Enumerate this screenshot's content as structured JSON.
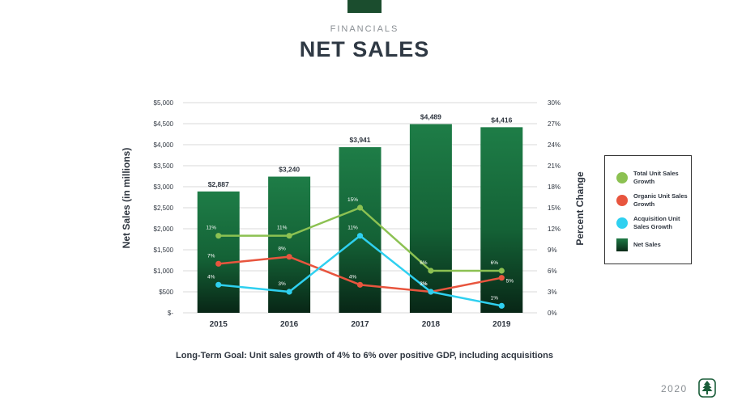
{
  "header": {
    "section_label": "FINANCIALS",
    "title": "NET SALES"
  },
  "chart_data": {
    "type": "bar",
    "categories": [
      "2015",
      "2016",
      "2017",
      "2018",
      "2019"
    ],
    "bar_series": {
      "name": "Net Sales",
      "values": [
        2887,
        3240,
        3941,
        4489,
        4416
      ],
      "labels": [
        "$2,887",
        "$3,240",
        "$3,941",
        "$4,489",
        "$4,416"
      ]
    },
    "line_series": [
      {
        "name": "Total Unit Sales Growth",
        "color": "#8cc152",
        "values": [
          11,
          11,
          15,
          6,
          6
        ],
        "labels": [
          "11%",
          "11%",
          "15%",
          "6%",
          "6%"
        ]
      },
      {
        "name": "Organic Unit Sales Growth",
        "color": "#e8553e",
        "values": [
          7,
          8,
          4,
          3,
          5
        ],
        "labels": [
          "7%",
          "8%",
          "4%",
          "3%",
          "5%"
        ]
      },
      {
        "name": "Acquisition Unit Sales Growth",
        "color": "#2fd0f0",
        "values": [
          4,
          3,
          11,
          3,
          1
        ],
        "labels": [
          "4%",
          "3%",
          "11%",
          "3%",
          "1%"
        ]
      }
    ],
    "ylabel_left": "Net Sales  (in millions)",
    "ylabel_right": "Percent Change",
    "ylim_left": [
      0,
      5000
    ],
    "ylim_right": [
      0,
      30
    ],
    "left_ticks": [
      "$-",
      "$500",
      "$1,000",
      "$1,500",
      "$2,000",
      "$2,500",
      "$3,000",
      "$3,500",
      "$4,000",
      "$4,500",
      "$5,000"
    ],
    "right_ticks": [
      "0%",
      "3%",
      "6%",
      "9%",
      "12%",
      "15%",
      "18%",
      "21%",
      "24%",
      "27%",
      "30%"
    ],
    "grid": true,
    "legend_position": "right"
  },
  "legend": {
    "items": [
      {
        "label": "Total Unit Sales Growth",
        "color": "#8cc152"
      },
      {
        "label": "Organic Unit Sales Growth",
        "color": "#e8553e"
      },
      {
        "label": "Acquisition Unit Sales Growth",
        "color": "#2fd0f0"
      },
      {
        "label": "Net Sales"
      }
    ]
  },
  "footnote": "Long-Term Goal: Unit sales growth of 4% to 6% over positive GDP, including acquisitions",
  "footer": {
    "year": "2020",
    "logo_icon": "tree-logo-icon"
  }
}
